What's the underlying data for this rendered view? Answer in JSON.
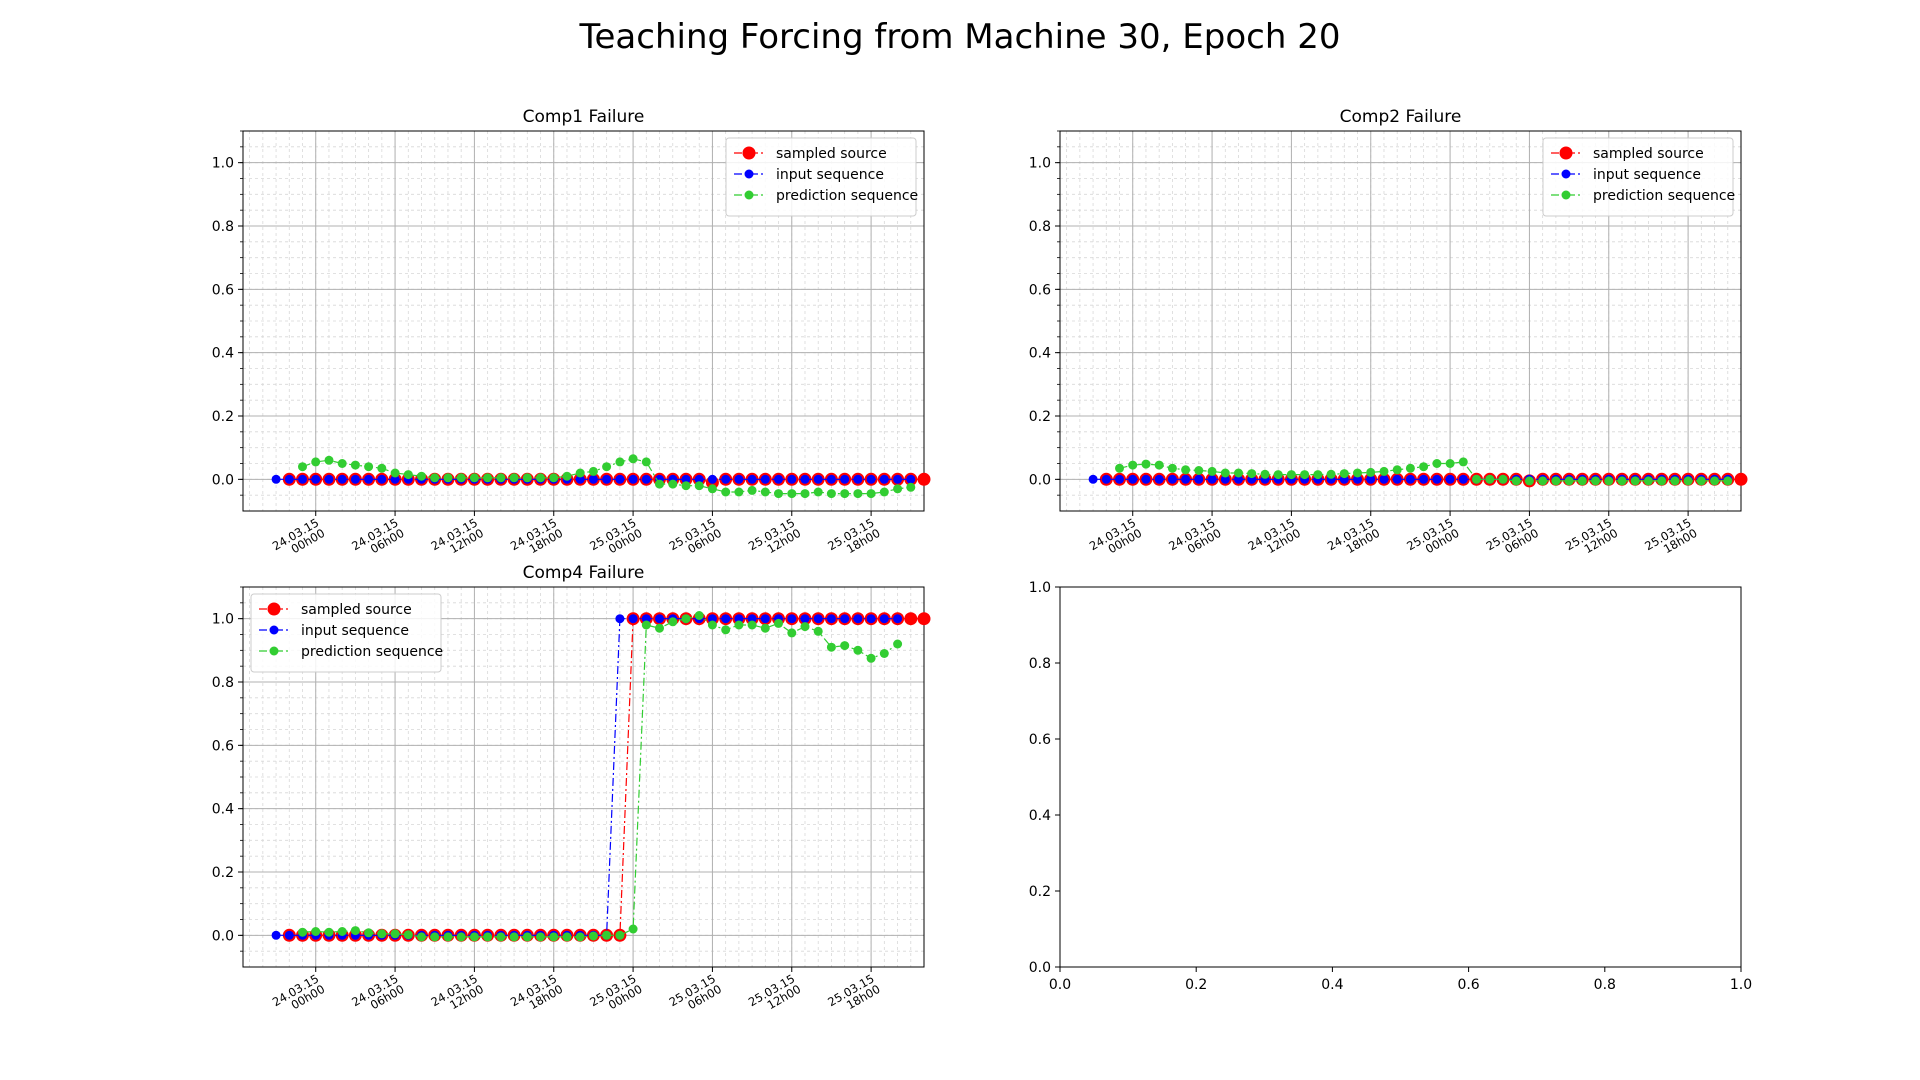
{
  "figure": {
    "title": "Teaching Forcing from Machine 30, Epoch 20"
  },
  "colors": {
    "sampled_source": "#ff0000",
    "input_sequence": "#0000ff",
    "prediction_sequence": "#32cd32",
    "grid_major": "#b0b0b0",
    "grid_minor": "#d8d8d8"
  },
  "chart_data": [
    {
      "id": "comp1",
      "type": "line",
      "title": "Comp1 Failure",
      "ylim": [
        -0.1,
        1.1
      ],
      "yticks": [
        0.0,
        0.2,
        0.4,
        0.6,
        0.8,
        1.0
      ],
      "ytick_labels": [
        "0.0",
        "0.2",
        "0.4",
        "0.6",
        "0.8",
        "1.0"
      ],
      "xlim": [
        -2.5,
        49
      ],
      "xticks": [
        3,
        9,
        15,
        21,
        27,
        33,
        39,
        45
      ],
      "xtick_labels": [
        [
          "24.03.15",
          "00h00"
        ],
        [
          "24.03.15",
          "06h00"
        ],
        [
          "24.03.15",
          "12h00"
        ],
        [
          "24.03.15",
          "18h00"
        ],
        [
          "25.03.15",
          "00h00"
        ],
        [
          "25.03.15",
          "06h00"
        ],
        [
          "25.03.15",
          "12h00"
        ],
        [
          "25.03.15",
          "18h00"
        ]
      ],
      "grid": true,
      "legend": {
        "position": "upper-right",
        "entries": [
          "sampled source",
          "input sequence",
          "prediction sequence"
        ]
      },
      "series": [
        {
          "name": "sampled source",
          "key": "sampled_source",
          "start": 1,
          "values": [
            0,
            0,
            0,
            0,
            0,
            0,
            0,
            0,
            0,
            0,
            0,
            0,
            0,
            0,
            0,
            0,
            0,
            0,
            0,
            0,
            0,
            0,
            0,
            0,
            0,
            0,
            0,
            0,
            0,
            0,
            0,
            0,
            -0.01,
            0,
            0,
            0,
            0,
            0,
            0,
            0,
            0,
            0,
            0,
            0,
            0,
            0,
            0,
            0,
            0
          ]
        },
        {
          "name": "input sequence",
          "key": "input_sequence",
          "start": 0,
          "values": [
            0,
            0,
            0,
            0,
            0,
            0,
            0,
            0,
            0,
            0,
            0,
            0,
            0,
            0,
            0,
            0,
            0,
            0,
            0,
            0,
            0,
            0,
            0,
            0,
            0,
            0,
            0,
            0,
            0,
            0,
            0,
            0,
            0,
            0,
            0,
            0,
            0,
            0,
            0,
            0,
            0,
            0,
            0,
            0,
            0,
            0,
            0,
            0,
            0
          ]
        },
        {
          "name": "prediction sequence",
          "key": "prediction_sequence",
          "start": 2,
          "values": [
            0.04,
            0.055,
            0.06,
            0.05,
            0.045,
            0.04,
            0.035,
            0.02,
            0.015,
            0.01,
            0.005,
            0.005,
            0.005,
            0.005,
            0.005,
            0.005,
            0.005,
            0.005,
            0.005,
            0.005,
            0.01,
            0.02,
            0.025,
            0.04,
            0.055,
            0.065,
            0.055,
            -0.015,
            -0.015,
            -0.02,
            -0.02,
            -0.03,
            -0.04,
            -0.04,
            -0.035,
            -0.04,
            -0.045,
            -0.045,
            -0.045,
            -0.04,
            -0.045,
            -0.045,
            -0.045,
            -0.045,
            -0.04,
            -0.03,
            -0.025
          ]
        }
      ]
    },
    {
      "id": "comp2",
      "type": "line",
      "title": "Comp2 Failure",
      "ylim": [
        -0.1,
        1.1
      ],
      "yticks": [
        0.0,
        0.2,
        0.4,
        0.6,
        0.8,
        1.0
      ],
      "ytick_labels": [
        "0.0",
        "0.2",
        "0.4",
        "0.6",
        "0.8",
        "1.0"
      ],
      "xlim": [
        -2.5,
        49
      ],
      "xticks": [
        3,
        9,
        15,
        21,
        27,
        33,
        39,
        45
      ],
      "xtick_labels": [
        [
          "24.03.15",
          "00h00"
        ],
        [
          "24.03.15",
          "06h00"
        ],
        [
          "24.03.15",
          "12h00"
        ],
        [
          "24.03.15",
          "18h00"
        ],
        [
          "25.03.15",
          "00h00"
        ],
        [
          "25.03.15",
          "06h00"
        ],
        [
          "25.03.15",
          "12h00"
        ],
        [
          "25.03.15",
          "18h00"
        ]
      ],
      "grid": true,
      "legend": {
        "position": "upper-right",
        "entries": [
          "sampled source",
          "input sequence",
          "prediction sequence"
        ]
      },
      "series": [
        {
          "name": "sampled source",
          "key": "sampled_source",
          "start": 1,
          "values": [
            0,
            0,
            0,
            0,
            0,
            0,
            0,
            0,
            0,
            0,
            0,
            0,
            0,
            0,
            0,
            0,
            0,
            0,
            0,
            0,
            0,
            0,
            0,
            0,
            0,
            0,
            0,
            0,
            0,
            0,
            0,
            0,
            -0.005,
            0,
            0,
            0,
            0,
            0,
            0,
            0,
            0,
            0,
            0,
            0,
            0,
            0,
            0,
            0,
            0
          ]
        },
        {
          "name": "input sequence",
          "key": "input_sequence",
          "start": 0,
          "values": [
            0,
            0,
            0,
            0,
            0,
            0,
            0,
            0,
            0,
            0,
            0,
            0,
            0,
            0,
            0,
            0,
            0,
            0,
            0,
            0,
            0,
            0,
            0,
            0,
            0,
            0,
            0,
            0,
            0,
            0,
            0,
            0,
            0,
            0,
            0,
            0,
            0,
            0,
            0,
            0,
            0,
            0,
            0,
            0,
            0,
            0,
            0,
            0,
            0
          ]
        },
        {
          "name": "prediction sequence",
          "key": "prediction_sequence",
          "start": 2,
          "values": [
            0.035,
            0.045,
            0.048,
            0.045,
            0.035,
            0.03,
            0.028,
            0.025,
            0.02,
            0.02,
            0.018,
            0.016,
            0.015,
            0.015,
            0.015,
            0.015,
            0.016,
            0.018,
            0.02,
            0.022,
            0.025,
            0.03,
            0.035,
            0.04,
            0.05,
            0.05,
            0.055,
            0.0,
            0.0,
            0.0,
            -0.005,
            -0.005,
            -0.005,
            -0.005,
            -0.005,
            -0.005,
            -0.005,
            -0.005,
            -0.005,
            -0.005,
            -0.005,
            -0.005,
            -0.005,
            -0.005,
            -0.005,
            -0.005,
            -0.005
          ]
        }
      ]
    },
    {
      "id": "comp4",
      "type": "line",
      "title": "Comp4 Failure",
      "ylim": [
        -0.1,
        1.1
      ],
      "yticks": [
        0.0,
        0.2,
        0.4,
        0.6,
        0.8,
        1.0
      ],
      "ytick_labels": [
        "0.0",
        "0.2",
        "0.4",
        "0.6",
        "0.8",
        "1.0"
      ],
      "xlim": [
        -2.5,
        49
      ],
      "xticks": [
        3,
        9,
        15,
        21,
        27,
        33,
        39,
        45
      ],
      "xtick_labels": [
        [
          "24.03.15",
          "00h00"
        ],
        [
          "24.03.15",
          "06h00"
        ],
        [
          "24.03.15",
          "12h00"
        ],
        [
          "24.03.15",
          "18h00"
        ],
        [
          "25.03.15",
          "00h00"
        ],
        [
          "25.03.15",
          "06h00"
        ],
        [
          "25.03.15",
          "12h00"
        ],
        [
          "25.03.15",
          "18h00"
        ]
      ],
      "grid": true,
      "legend": {
        "position": "upper-left",
        "entries": [
          "sampled source",
          "input sequence",
          "prediction sequence"
        ]
      },
      "series": [
        {
          "name": "sampled source",
          "key": "sampled_source",
          "start": 1,
          "values": [
            0,
            0,
            0,
            0,
            0,
            0,
            0,
            0,
            0,
            0,
            0,
            0,
            0,
            0,
            0,
            0,
            0,
            0,
            0,
            0,
            0,
            0,
            0,
            0,
            0,
            0,
            1,
            1,
            1,
            1,
            1,
            1,
            1,
            1,
            1,
            1,
            1,
            1,
            1,
            1,
            1,
            1,
            1,
            1,
            1,
            1,
            1,
            1,
            1
          ]
        },
        {
          "name": "input sequence",
          "key": "input_sequence",
          "start": 0,
          "values": [
            0,
            0,
            0,
            0,
            0,
            0,
            0,
            0,
            0,
            0,
            0,
            0,
            0,
            0,
            0,
            0,
            0,
            0,
            0,
            0,
            0,
            0,
            0,
            0,
            0,
            0,
            1,
            1,
            1,
            1,
            1,
            1,
            1,
            1,
            1,
            1,
            1,
            1,
            1,
            1,
            1,
            1,
            1,
            1,
            1,
            1,
            1,
            1
          ]
        },
        {
          "name": "prediction sequence",
          "key": "prediction_sequence",
          "start": 2,
          "values": [
            0.01,
            0.012,
            0.01,
            0.012,
            0.015,
            0.008,
            0.005,
            0.005,
            0.002,
            -0.005,
            -0.005,
            -0.005,
            -0.005,
            -0.005,
            -0.005,
            -0.005,
            -0.005,
            -0.005,
            -0.005,
            -0.005,
            -0.005,
            -0.005,
            -0.002,
            0.0,
            0.0,
            0.02,
            0.98,
            0.97,
            0.99,
            1.0,
            1.01,
            0.98,
            0.965,
            0.98,
            0.98,
            0.97,
            0.985,
            0.955,
            0.975,
            0.96,
            0.91,
            0.915,
            0.9,
            0.875,
            0.89,
            0.92
          ]
        }
      ]
    },
    {
      "id": "empty",
      "type": "line",
      "title": "",
      "ylim": [
        0.0,
        1.0
      ],
      "xlim": [
        0.0,
        1.0
      ],
      "yticks": [
        0.0,
        0.2,
        0.4,
        0.6,
        0.8,
        1.0
      ],
      "ytick_labels": [
        "0.0",
        "0.2",
        "0.4",
        "0.6",
        "0.8",
        "1.0"
      ],
      "xticks": [
        0.0,
        0.2,
        0.4,
        0.6,
        0.8,
        1.0
      ],
      "xtick_labels": [
        "0.0",
        "0.2",
        "0.4",
        "0.6",
        "0.8",
        "1.0"
      ],
      "grid": false,
      "series": []
    }
  ]
}
